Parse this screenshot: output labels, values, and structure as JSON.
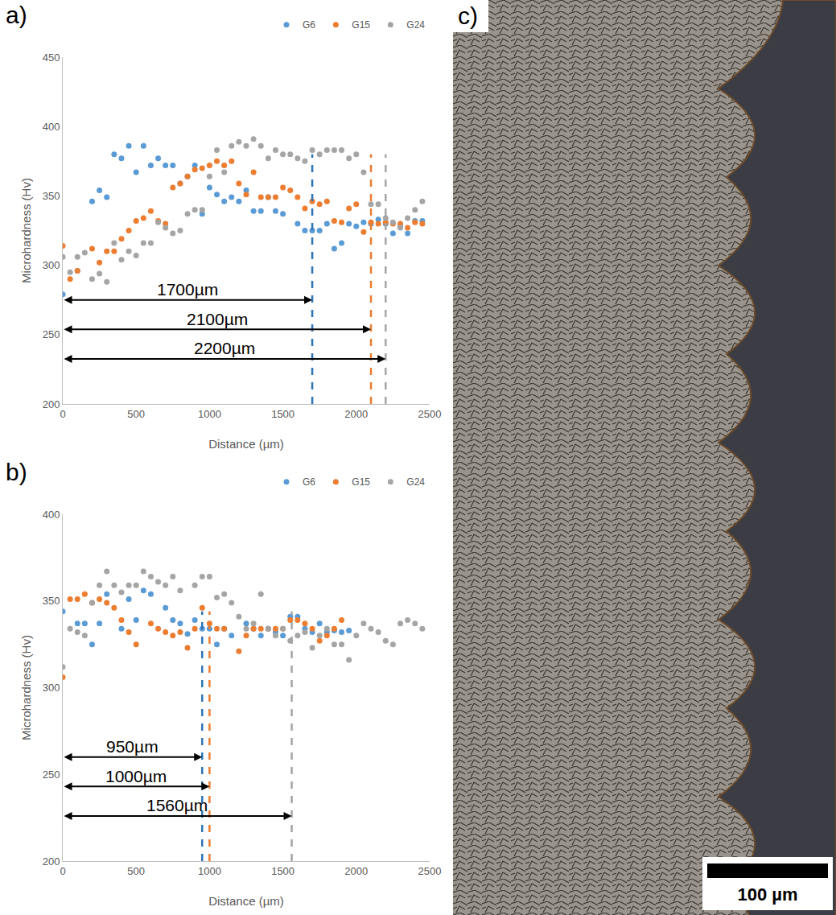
{
  "chart_data": [
    {
      "type": "scatter",
      "label": "a)",
      "x_label": "Distance (µm)",
      "y_label": "Microhardness (Hv)",
      "xlim": [
        0,
        2500
      ],
      "xticks": [
        0,
        500,
        1000,
        1500,
        2000,
        2500
      ],
      "ylim": [
        200,
        450
      ],
      "yticks": [
        200,
        250,
        300,
        350,
        400,
        450
      ],
      "grid": false,
      "legend": "top right",
      "marker": "circle",
      "series": [
        {
          "name": "G6",
          "color": "#5b9bd5",
          "x": [
            0,
            100,
            200,
            250,
            300,
            350,
            400,
            450,
            500,
            550,
            600,
            650,
            700,
            750,
            800,
            850,
            900,
            950,
            1000,
            1050,
            1100,
            1150,
            1200,
            1250,
            1300,
            1350,
            1400,
            1450,
            1500,
            1600,
            1650,
            1700,
            1750,
            1800,
            1850,
            1900,
            1950,
            2000,
            2050,
            2100,
            2150,
            2200,
            2250,
            2300,
            2350,
            2400,
            2450
          ],
          "values": [
            279,
            296,
            346,
            354,
            349,
            380,
            377,
            386,
            367,
            386,
            372,
            377,
            372,
            372,
            359,
            364,
            372,
            337,
            356,
            351,
            346,
            349,
            346,
            354,
            339,
            339,
            349,
            339,
            337,
            330,
            325,
            325,
            325,
            330,
            312,
            316,
            330,
            328,
            331,
            330,
            333,
            330,
            323,
            328,
            323,
            332,
            332
          ]
        },
        {
          "name": "G15",
          "color": "#ed7d31",
          "x": [
            0,
            50,
            100,
            200,
            250,
            300,
            350,
            400,
            450,
            500,
            550,
            600,
            650,
            700,
            750,
            800,
            850,
            900,
            950,
            1000,
            1050,
            1100,
            1150,
            1200,
            1250,
            1300,
            1350,
            1400,
            1450,
            1500,
            1550,
            1600,
            1650,
            1700,
            1750,
            1800,
            1850,
            1900,
            1950,
            2000,
            2050,
            2100,
            2150,
            2200,
            2250,
            2300,
            2350,
            2400,
            2450
          ],
          "values": [
            314,
            290,
            296,
            312,
            302,
            310,
            310,
            319,
            325,
            332,
            334,
            339,
            332,
            330,
            356,
            359,
            364,
            369,
            370,
            372,
            375,
            372,
            375,
            359,
            351,
            367,
            349,
            349,
            349,
            356,
            354,
            349,
            341,
            346,
            344,
            346,
            332,
            331,
            341,
            344,
            324,
            331,
            330,
            331,
            330,
            330,
            327,
            331,
            330
          ]
        },
        {
          "name": "G24",
          "color": "#a5a5a5",
          "x": [
            0,
            50,
            100,
            150,
            200,
            250,
            300,
            350,
            400,
            450,
            500,
            550,
            600,
            650,
            700,
            750,
            800,
            850,
            900,
            950,
            1000,
            1050,
            1100,
            1150,
            1200,
            1250,
            1300,
            1350,
            1400,
            1450,
            1500,
            1550,
            1600,
            1650,
            1700,
            1750,
            1800,
            1850,
            1900,
            1950,
            2000,
            2050,
            2100,
            2150,
            2200,
            2250,
            2300,
            2350,
            2400,
            2450
          ],
          "values": [
            306,
            295,
            306,
            309,
            290,
            294,
            288,
            316,
            304,
            310,
            307,
            316,
            316,
            331,
            327,
            323,
            325,
            337,
            340,
            340,
            364,
            383,
            367,
            386,
            389,
            386,
            391,
            386,
            377,
            383,
            380,
            380,
            377,
            375,
            383,
            380,
            383,
            383,
            383,
            377,
            380,
            367,
            344,
            344,
            334,
            331,
            327,
            334,
            340,
            346
          ]
        }
      ],
      "annotations": [
        {
          "x": 1700,
          "text": "1700µm",
          "color": "#2e75b6"
        },
        {
          "x": 2100,
          "text": "2100µm",
          "color": "#ed7d31"
        },
        {
          "x": 2200,
          "text": "2200µm",
          "color": "#a5a5a5"
        }
      ]
    },
    {
      "type": "scatter",
      "label": "b)",
      "x_label": "Distance (µm)",
      "y_label": "Microhardness (Hv)",
      "xlim": [
        0,
        2500
      ],
      "xticks": [
        0,
        500,
        1000,
        1500,
        2000,
        2500
      ],
      "ylim": [
        200,
        400
      ],
      "yticks": [
        200,
        250,
        300,
        350,
        400
      ],
      "grid": false,
      "legend": "top right",
      "marker": "circle",
      "series": [
        {
          "name": "G6",
          "color": "#5b9bd5",
          "x": [
            0,
            100,
            150,
            200,
            250,
            300,
            400,
            450,
            500,
            550,
            600,
            700,
            750,
            800,
            850,
            900,
            950,
            1000,
            1050,
            1100,
            1150,
            1250,
            1300,
            1350,
            1400,
            1450,
            1500,
            1550,
            1600,
            1650,
            1700,
            1750,
            1800,
            1850,
            1900,
            1950
          ],
          "values": [
            344,
            337,
            337,
            325,
            337,
            354,
            334,
            351,
            339,
            356,
            354,
            346,
            339,
            337,
            331,
            339,
            334,
            334,
            325,
            334,
            330,
            337,
            334,
            330,
            334,
            332,
            330,
            341,
            341,
            334,
            332,
            337,
            332,
            333,
            332,
            333
          ]
        },
        {
          "name": "G15",
          "color": "#ed7d31",
          "x": [
            0,
            50,
            100,
            150,
            200,
            250,
            300,
            350,
            400,
            450,
            500,
            600,
            650,
            700,
            750,
            800,
            850,
            900,
            950,
            1000,
            1050,
            1100,
            1200,
            1250,
            1300,
            1350,
            1400,
            1450,
            1500,
            1550,
            1600,
            1650,
            1700,
            1750,
            1800,
            1850,
            1900
          ],
          "values": [
            306,
            351,
            351,
            354,
            349,
            351,
            349,
            346,
            339,
            332,
            325,
            337,
            334,
            332,
            330,
            332,
            323,
            334,
            346,
            337,
            334,
            334,
            321,
            330,
            334,
            334,
            334,
            334,
            334,
            339,
            339,
            337,
            334,
            327,
            330,
            334,
            339
          ]
        },
        {
          "name": "G24",
          "color": "#a5a5a5",
          "x": [
            0,
            50,
            100,
            150,
            200,
            250,
            300,
            350,
            400,
            450,
            500,
            550,
            600,
            650,
            700,
            750,
            800,
            900,
            950,
            1000,
            1050,
            1100,
            1150,
            1200,
            1250,
            1300,
            1350,
            1400,
            1450,
            1500,
            1550,
            1600,
            1650,
            1700,
            1750,
            1800,
            1850,
            1900,
            1950,
            2000,
            2050,
            2100,
            2150,
            2200,
            2250,
            2300,
            2350,
            2400,
            2450
          ],
          "values": [
            312,
            334,
            332,
            330,
            349,
            359,
            367,
            359,
            355,
            359,
            359,
            367,
            364,
            361,
            359,
            364,
            356,
            359,
            364,
            364,
            352,
            354,
            349,
            341,
            334,
            337,
            354,
            334,
            330,
            334,
            327,
            330,
            332,
            323,
            330,
            334,
            325,
            325,
            316,
            330,
            337,
            334,
            332,
            327,
            325,
            337,
            339,
            337,
            334
          ]
        }
      ],
      "annotations": [
        {
          "x": 950,
          "text": "950µm",
          "color": "#2e75b6"
        },
        {
          "x": 1000,
          "text": "1000µm",
          "color": "#ed7d31"
        },
        {
          "x": 1560,
          "text": "1560µm",
          "color": "#a5a5a5"
        }
      ]
    }
  ],
  "image_panel": {
    "label": "c)",
    "scale_bar": "100 µm"
  }
}
